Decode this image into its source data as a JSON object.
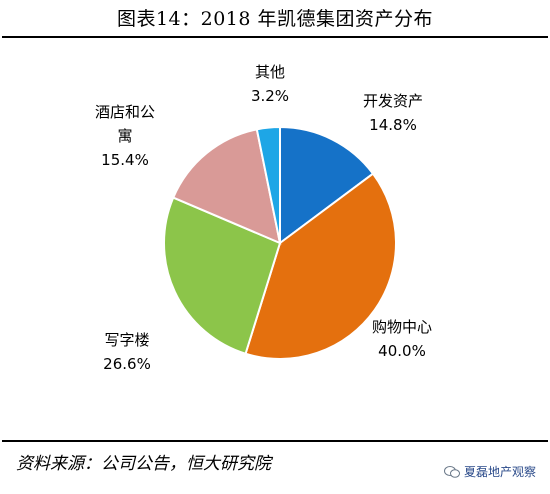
{
  "title": "图表14：2018 年凯德集团资产分布",
  "source": "资料来源：公司公告，恒大研究院",
  "watermark": "夏磊地产观察",
  "chart_data": {
    "type": "pie",
    "title": "图表14：2018 年凯德集团资产分布",
    "start_angle_deg": 0,
    "direction": "clockwise",
    "slices": [
      {
        "label": "开发资产",
        "label_lines": [
          "开发资产"
        ],
        "value": 14.8,
        "value_text": "14.8%",
        "color": "#1572c8"
      },
      {
        "label": "购物中心",
        "label_lines": [
          "购物中心"
        ],
        "value": 40.0,
        "value_text": "40.0%",
        "color": "#e4700e"
      },
      {
        "label": "写字楼",
        "label_lines": [
          "写字楼"
        ],
        "value": 26.6,
        "value_text": "26.6%",
        "color": "#8cc54a"
      },
      {
        "label": "酒店和公寓",
        "label_lines": [
          "酒店和公",
          "寓"
        ],
        "value": 15.4,
        "value_text": "15.4%",
        "color": "#d99a97"
      },
      {
        "label": "其他",
        "label_lines": [
          "其他"
        ],
        "value": 3.2,
        "value_text": "3.2%",
        "color": "#1ea6e6"
      }
    ]
  }
}
